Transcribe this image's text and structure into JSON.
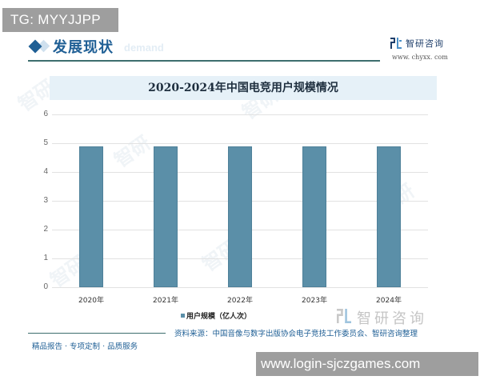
{
  "overlay": {
    "tg_badge": "TG: MYYJJPP",
    "url_badge": "www.login-sjczgames.com"
  },
  "header": {
    "section_title": "发展现状",
    "section_ghost_text": "demand",
    "brand_name": "智研咨询",
    "brand_url": "www. chyxx. com"
  },
  "watermark": {
    "text": "智研咨询"
  },
  "footer": {
    "source": "资料来源：中国音像与数字出版协会电子竞技工作委员会、智研咨询整理",
    "tagline": "精品报告 · 专项定制 · 品质服务"
  },
  "colors": {
    "bar": "#5b8fa8",
    "accent": "#1f5f95",
    "title_band": "#e6f1f8"
  },
  "chart_data": {
    "type": "bar",
    "title": "2020-2024年中国电竞用户规模情况",
    "categories": [
      "2020年",
      "2021年",
      "2022年",
      "2023年",
      "2024年"
    ],
    "series": [
      {
        "name": "用户规模（亿人次）",
        "values": [
          4.9,
          4.9,
          4.9,
          4.9,
          4.9
        ]
      }
    ],
    "xlabel": "",
    "ylabel": "",
    "ylim": [
      0,
      6
    ],
    "yticks": [
      "0",
      "1",
      "2",
      "3",
      "4",
      "5",
      "6"
    ],
    "grid": true,
    "legend_position": "bottom"
  }
}
